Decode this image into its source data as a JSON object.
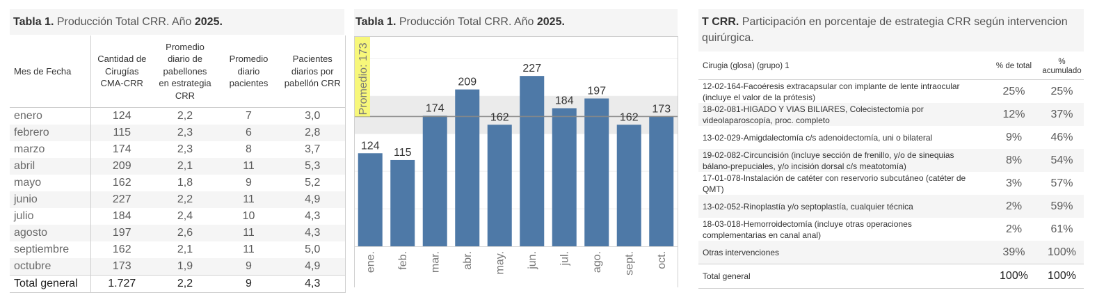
{
  "table1": {
    "title": {
      "bold": "Tabla 1.",
      "text": " Producción Total CRR. Año ",
      "year": "2025."
    },
    "columns": [
      "Mes de Fecha",
      "Cantidad de\nCirugías\nCMA-CRR",
      "Promedio\ndiario de\npabellones\nen estrategia\nCRR",
      "Promedio\ndiario\npacientes",
      "Pacientes\ndiarios por\npabellón CRR"
    ],
    "rows": [
      {
        "month": "enero",
        "cirugias": "124",
        "pabellones": "2,2",
        "pacientes": "7",
        "pac_por_pab": "3,0"
      },
      {
        "month": "febrero",
        "cirugias": "115",
        "pabellones": "2,3",
        "pacientes": "6",
        "pac_por_pab": "2,8"
      },
      {
        "month": "marzo",
        "cirugias": "174",
        "pabellones": "2,3",
        "pacientes": "8",
        "pac_por_pab": "3,7"
      },
      {
        "month": "abril",
        "cirugias": "209",
        "pabellones": "2,1",
        "pacientes": "11",
        "pac_por_pab": "5,3"
      },
      {
        "month": "mayo",
        "cirugias": "162",
        "pabellones": "1,8",
        "pacientes": "9",
        "pac_por_pab": "5,2"
      },
      {
        "month": "junio",
        "cirugias": "227",
        "pabellones": "2,2",
        "pacientes": "11",
        "pac_por_pab": "4,9"
      },
      {
        "month": "julio",
        "cirugias": "184",
        "pabellones": "2,4",
        "pacientes": "10",
        "pac_por_pab": "4,3"
      },
      {
        "month": "agosto",
        "cirugias": "197",
        "pabellones": "2,6",
        "pacientes": "11",
        "pac_por_pab": "4,3"
      },
      {
        "month": "septiembre",
        "cirugias": "162",
        "pabellones": "2,1",
        "pacientes": "11",
        "pac_por_pab": "5,0"
      },
      {
        "month": "octubre",
        "cirugias": "173",
        "pabellones": "1,9",
        "pacientes": "9",
        "pac_por_pab": "4,9"
      }
    ],
    "total": {
      "month": "Total general",
      "cirugias": "1.727",
      "pabellones": "2,2",
      "pacientes": "9",
      "pac_por_pab": "4,3"
    }
  },
  "chart_data": {
    "type": "bar",
    "title": {
      "bold": "Tabla 1.",
      "text": " Producción Total CRR. Año ",
      "year": "2025."
    },
    "categories": [
      "ene.",
      "feb.",
      "mar.",
      "abr.",
      "may.",
      "jun.",
      "jul.",
      "ago.",
      "sept.",
      "oct."
    ],
    "values": [
      124,
      115,
      174,
      209,
      162,
      227,
      184,
      197,
      162,
      173
    ],
    "data_labels": true,
    "xlabel": "",
    "ylabel": "",
    "ylim": [
      0,
      280
    ],
    "grid": true,
    "grid_step": 50,
    "reference_line": {
      "label": "Promedio: 173",
      "value": 173
    },
    "reference_band": [
      150,
      200
    ],
    "colors": {
      "bar": "#4e79a7",
      "band": "#ebebeb",
      "reference_line": "#888888",
      "label_bg": "#f7f77a",
      "grid": "#efefef"
    }
  },
  "table2": {
    "title": {
      "bold": "T CRR.",
      "text": " Participación en porcentaje de estrategia CRR según intervencion\nquirúrgica."
    },
    "columns": [
      "Cirugia (glosa) (grupo) 1",
      "% de total",
      "%\nacumulado"
    ],
    "rows": [
      {
        "label": "12-02-164-Facoéresis extracapsular con implante de lente intraocular\n(incluye el valor de la prótesis)",
        "pct": "25%",
        "cum": "25%"
      },
      {
        "label": "18-02-081-HIGADO Y VIAS BILIARES, Colecistectomía por\nvideolaparoscopía, proc. completo",
        "pct": "12%",
        "cum": "37%"
      },
      {
        "label": "13-02-029-Amigdalectomía c/s adenoidectomía, uni o bilateral",
        "pct": "9%",
        "cum": "46%"
      },
      {
        "label": "19-02-082-Circuncisión (incluye sección de frenillo, y/o de sinequias\nbálano-prepuciales, y/o incisión dorsal c/s meatotomía)",
        "pct": "8%",
        "cum": "54%"
      },
      {
        "label": "17-01-078-Instalación de catéter con reservorio subcutáneo (catéter de\nQMT)",
        "pct": "3%",
        "cum": "57%"
      },
      {
        "label": "13-02-052-Rinoplastía y/o septoplastía, cualquier técnica",
        "pct": "2%",
        "cum": "59%"
      },
      {
        "label": "18-03-018-Hemorroidectomía (incluye otras operaciones\ncomplementarias en canal anal)",
        "pct": "2%",
        "cum": "61%"
      },
      {
        "label": "Otras intervenciones",
        "pct": "39%",
        "cum": "100%"
      }
    ],
    "total": {
      "label": "Total general",
      "pct": "100%",
      "cum": "100%"
    }
  }
}
